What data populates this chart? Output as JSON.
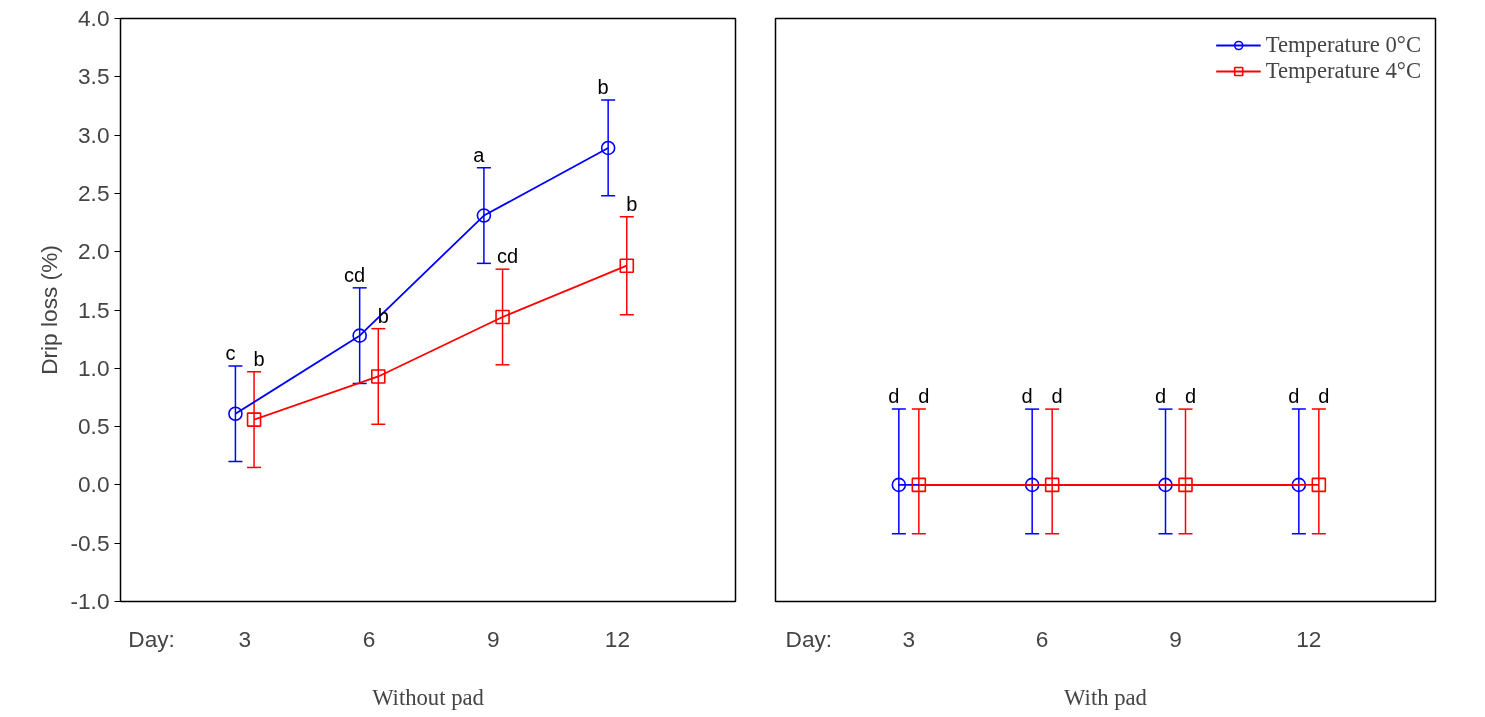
{
  "chart_data": [
    {
      "type": "line",
      "xlabel": "Without pad",
      "ylabel": "Drip loss (%)",
      "categories": [
        "3",
        "6",
        "9",
        "12"
      ],
      "annotations": [
        "Day:",
        {
          "text": "c",
          "x": "3",
          "y": 1.02
        },
        {
          "text": "b",
          "x": "3",
          "y": 0.97
        },
        {
          "text": "cd",
          "x": "6",
          "y": 1.69
        },
        {
          "text": "b",
          "x": "6",
          "y": 1.34
        },
        {
          "text": "a",
          "x": "9",
          "y": 2.72
        },
        {
          "text": "cd",
          "x": "9",
          "y": 1.85
        },
        {
          "text": "b",
          "x": "12",
          "y": 3.3
        },
        {
          "text": "b",
          "x": "12",
          "y": 2.3
        }
      ],
      "ylim": [
        -1.0,
        4.0
      ],
      "yticks": [
        {
          "value": -1,
          "label": "-1.0"
        },
        {
          "value": -0.5,
          "label": "-0.5"
        },
        {
          "value": 0,
          "label": "0.0"
        },
        {
          "value": 0.5,
          "label": "0.5"
        },
        {
          "value": 1,
          "label": "1.0"
        },
        {
          "value": 1.5,
          "label": "1.5"
        },
        {
          "value": 2,
          "label": "2.0"
        },
        {
          "value": 2.5,
          "label": "2.5"
        },
        {
          "value": 3,
          "label": "3.0"
        },
        {
          "value": 3.5,
          "label": "3.5"
        },
        {
          "value": 4,
          "label": "4.0"
        }
      ],
      "grid": false,
      "series": [
        {
          "color": "#0000ff",
          "marker": "circle",
          "values": [
            0.61,
            1.28,
            2.31,
            2.89
          ],
          "errors": [
            0.41,
            0.41,
            0.41,
            0.41
          ]
        },
        {
          "color": "#ff0000",
          "marker": "square",
          "values": [
            0.56,
            0.93,
            1.44,
            1.88
          ],
          "errors": [
            0.41,
            0.41,
            0.41,
            0.42
          ]
        }
      ]
    },
    {
      "type": "line",
      "xlabel": "With pad",
      "categories": [
        "3",
        "6",
        "9",
        "12"
      ],
      "annotations": [
        "Day:",
        {
          "text": "d",
          "x": "3",
          "y": 0.65
        },
        {
          "text": "d",
          "x": "3",
          "y": 0.65
        },
        {
          "text": "d",
          "x": "6",
          "y": 0.65
        },
        {
          "text": "d",
          "x": "6",
          "y": 0.65
        },
        {
          "text": "d",
          "x": "9",
          "y": 0.65
        },
        {
          "text": "d",
          "x": "9",
          "y": 0.65
        },
        {
          "text": "d",
          "x": "12",
          "y": 0.65
        },
        {
          "text": "d",
          "x": "12",
          "y": 0.65
        }
      ],
      "ylim": [
        -1.0,
        4.0
      ],
      "tick_labels": "x",
      "grid": false,
      "legend": "top right",
      "series": [
        {
          "name": "Temperature 0°C",
          "color": "#0000ff",
          "marker": "circle",
          "values": [
            0,
            0,
            0,
            0
          ],
          "errors": [
            [
              -0.42,
              0.65
            ],
            [
              -0.42,
              0.65
            ],
            [
              -0.42,
              0.65
            ],
            [
              -0.42,
              0.65
            ]
          ]
        },
        {
          "name": "Temperature 4°C",
          "color": "#ff0000",
          "marker": "square",
          "values": [
            0,
            0,
            0,
            0
          ],
          "errors": [
            [
              -0.42,
              0.65
            ],
            [
              -0.42,
              0.65
            ],
            [
              -0.42,
              0.65
            ],
            [
              -0.42,
              0.65
            ]
          ]
        }
      ]
    }
  ]
}
